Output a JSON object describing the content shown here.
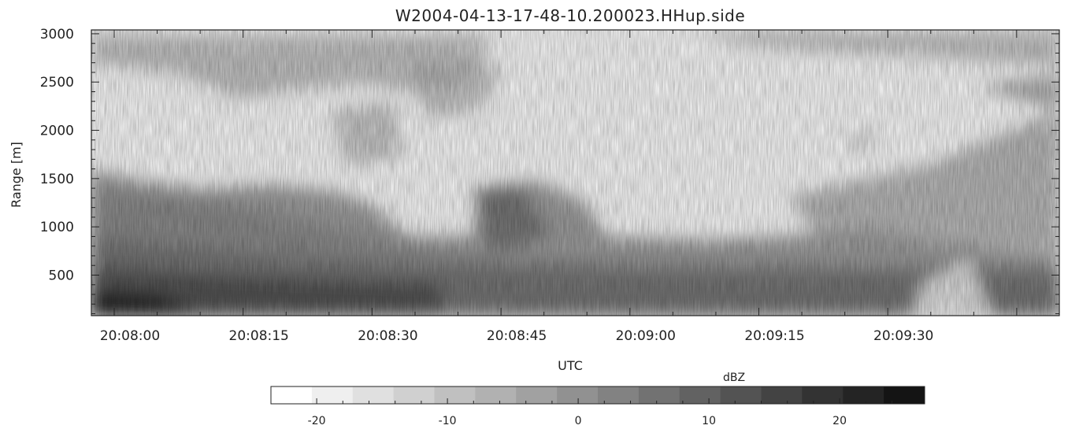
{
  "chart_data": {
    "type": "heatmap",
    "title": "W2004-04-13-17-48-10.200023.HHup.side",
    "xlabel": "UTC",
    "ylabel": "Range [m]",
    "x_ticks": [
      "20:08:00",
      "20:08:15",
      "20:08:30",
      "20:08:45",
      "20:09:00",
      "20:09:15",
      "20:09:30"
    ],
    "y_ticks": [
      500,
      1000,
      1500,
      2000,
      2500,
      3000
    ],
    "ylim": [
      80,
      3040
    ],
    "colorbar": {
      "label": "dBZ",
      "ticks": [
        -20,
        -10,
        0,
        10,
        20
      ],
      "range": [
        -23.5,
        26.5
      ],
      "colors": [
        "#ffffff",
        "#efefef",
        "#e0e0e0",
        "#d0d0d0",
        "#c0c0c0",
        "#b1b1b1",
        "#a1a1a1",
        "#919191",
        "#828282",
        "#727272",
        "#626262",
        "#535353",
        "#434343",
        "#333333",
        "#242424",
        "#141414"
      ]
    }
  }
}
